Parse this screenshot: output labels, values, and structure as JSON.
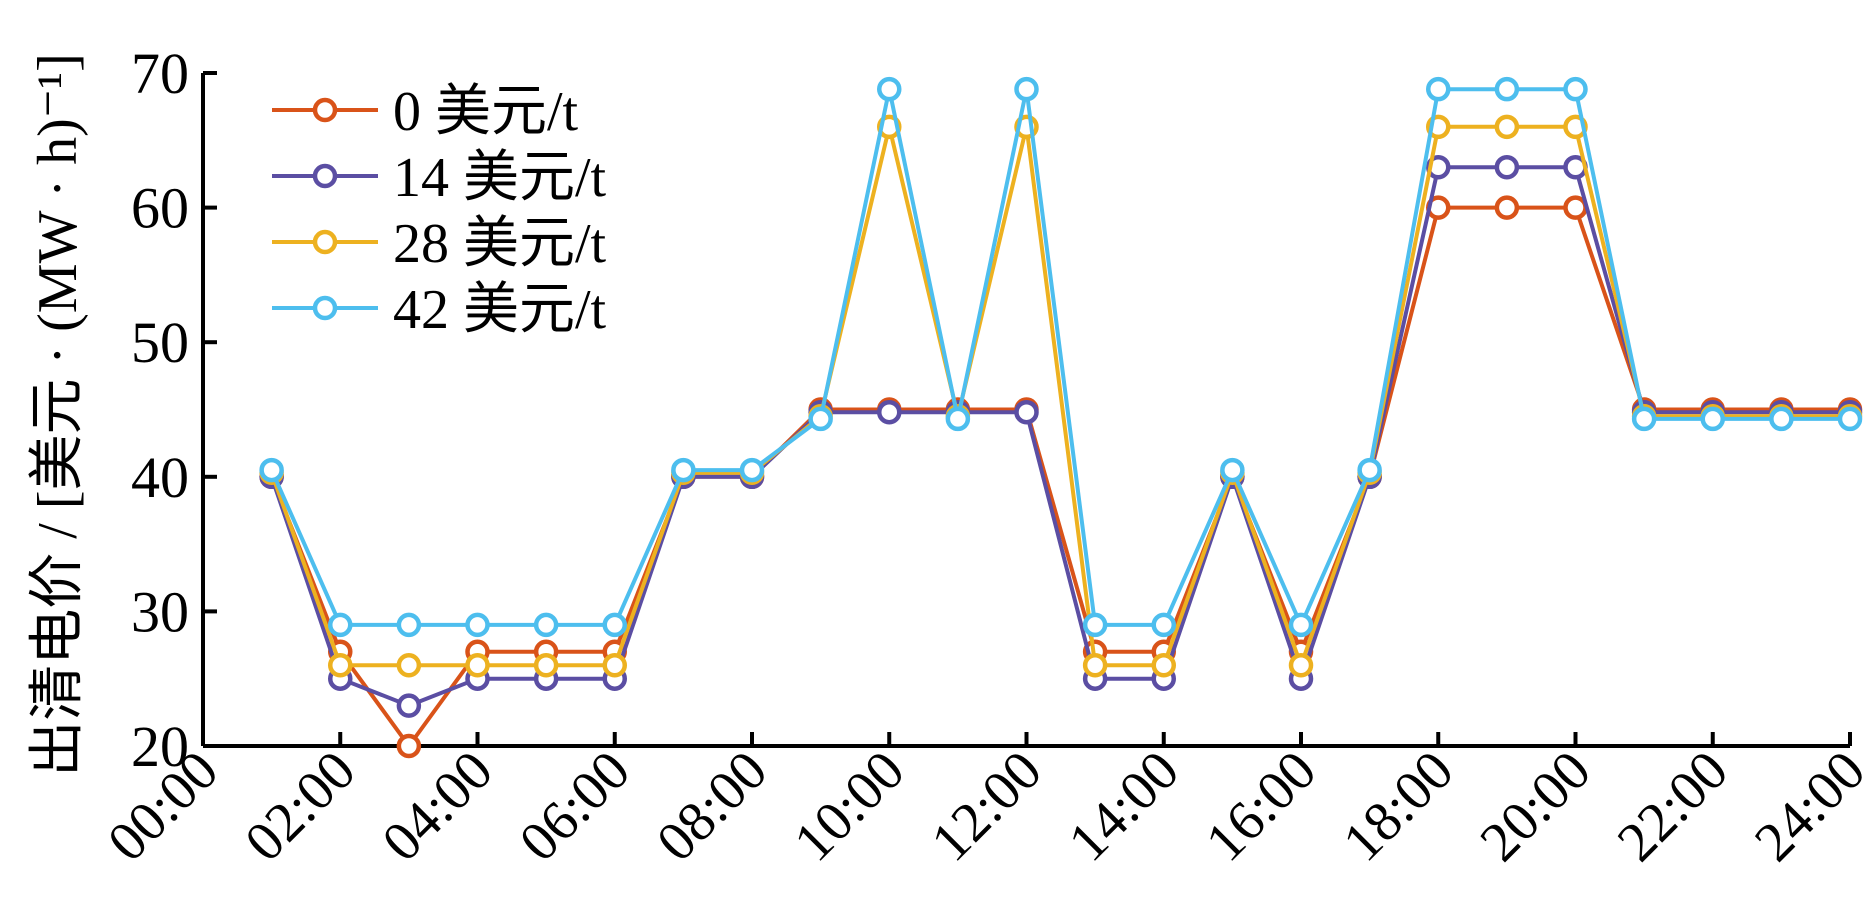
{
  "chart_data": {
    "type": "line",
    "ylabel": "出清电价 / [美元 · (MW · h)⁻¹]",
    "xlabel": "",
    "ylim": [
      20,
      70
    ],
    "xlim": [
      0,
      24
    ],
    "yticks": [
      "20",
      "30",
      "40",
      "50",
      "60",
      "70"
    ],
    "xticks": [
      "00:00",
      "02:00",
      "04:00",
      "06:00",
      "08:00",
      "10:00",
      "12:00",
      "14:00",
      "16:00",
      "18:00",
      "20:00",
      "22:00",
      "24:00"
    ],
    "legend_placement": "top-left",
    "grid": false,
    "x": [
      1,
      2,
      3,
      4,
      5,
      6,
      7,
      8,
      9,
      10,
      11,
      12,
      13,
      14,
      15,
      16,
      17,
      18,
      19,
      20,
      21,
      22,
      23,
      24
    ],
    "series": [
      {
        "name": "0 美元/t",
        "color": "#D95319",
        "values": [
          40,
          27,
          20,
          27,
          27,
          27,
          40,
          40,
          45,
          45,
          45,
          45,
          27,
          27,
          40,
          27,
          40,
          60,
          60,
          60,
          45,
          45,
          45,
          45
        ]
      },
      {
        "name": "14 美元/t",
        "color": "#5B4EA3",
        "values": [
          40,
          25,
          23,
          25,
          25,
          25,
          40,
          40,
          44.8,
          44.8,
          44.8,
          44.8,
          25,
          25,
          40,
          25,
          40,
          63,
          63,
          63,
          44.8,
          44.8,
          44.8,
          44.8
        ]
      },
      {
        "name": "28 美元/t",
        "color": "#EDB120",
        "values": [
          40.3,
          26,
          26,
          26,
          26,
          26,
          40.3,
          40.3,
          44.5,
          66,
          44.5,
          66,
          26,
          26,
          40.3,
          26,
          40.3,
          66,
          66,
          66,
          44.5,
          44.5,
          44.5,
          44.5
        ]
      },
      {
        "name": "42 美元/t",
        "color": "#4DBEEE",
        "values": [
          40.5,
          29,
          29,
          29,
          29,
          29,
          40.5,
          40.5,
          44.3,
          68.8,
          44.3,
          68.8,
          29,
          29,
          40.5,
          29,
          40.5,
          68.8,
          68.8,
          68.8,
          44.3,
          44.3,
          44.3,
          44.3
        ]
      }
    ]
  }
}
